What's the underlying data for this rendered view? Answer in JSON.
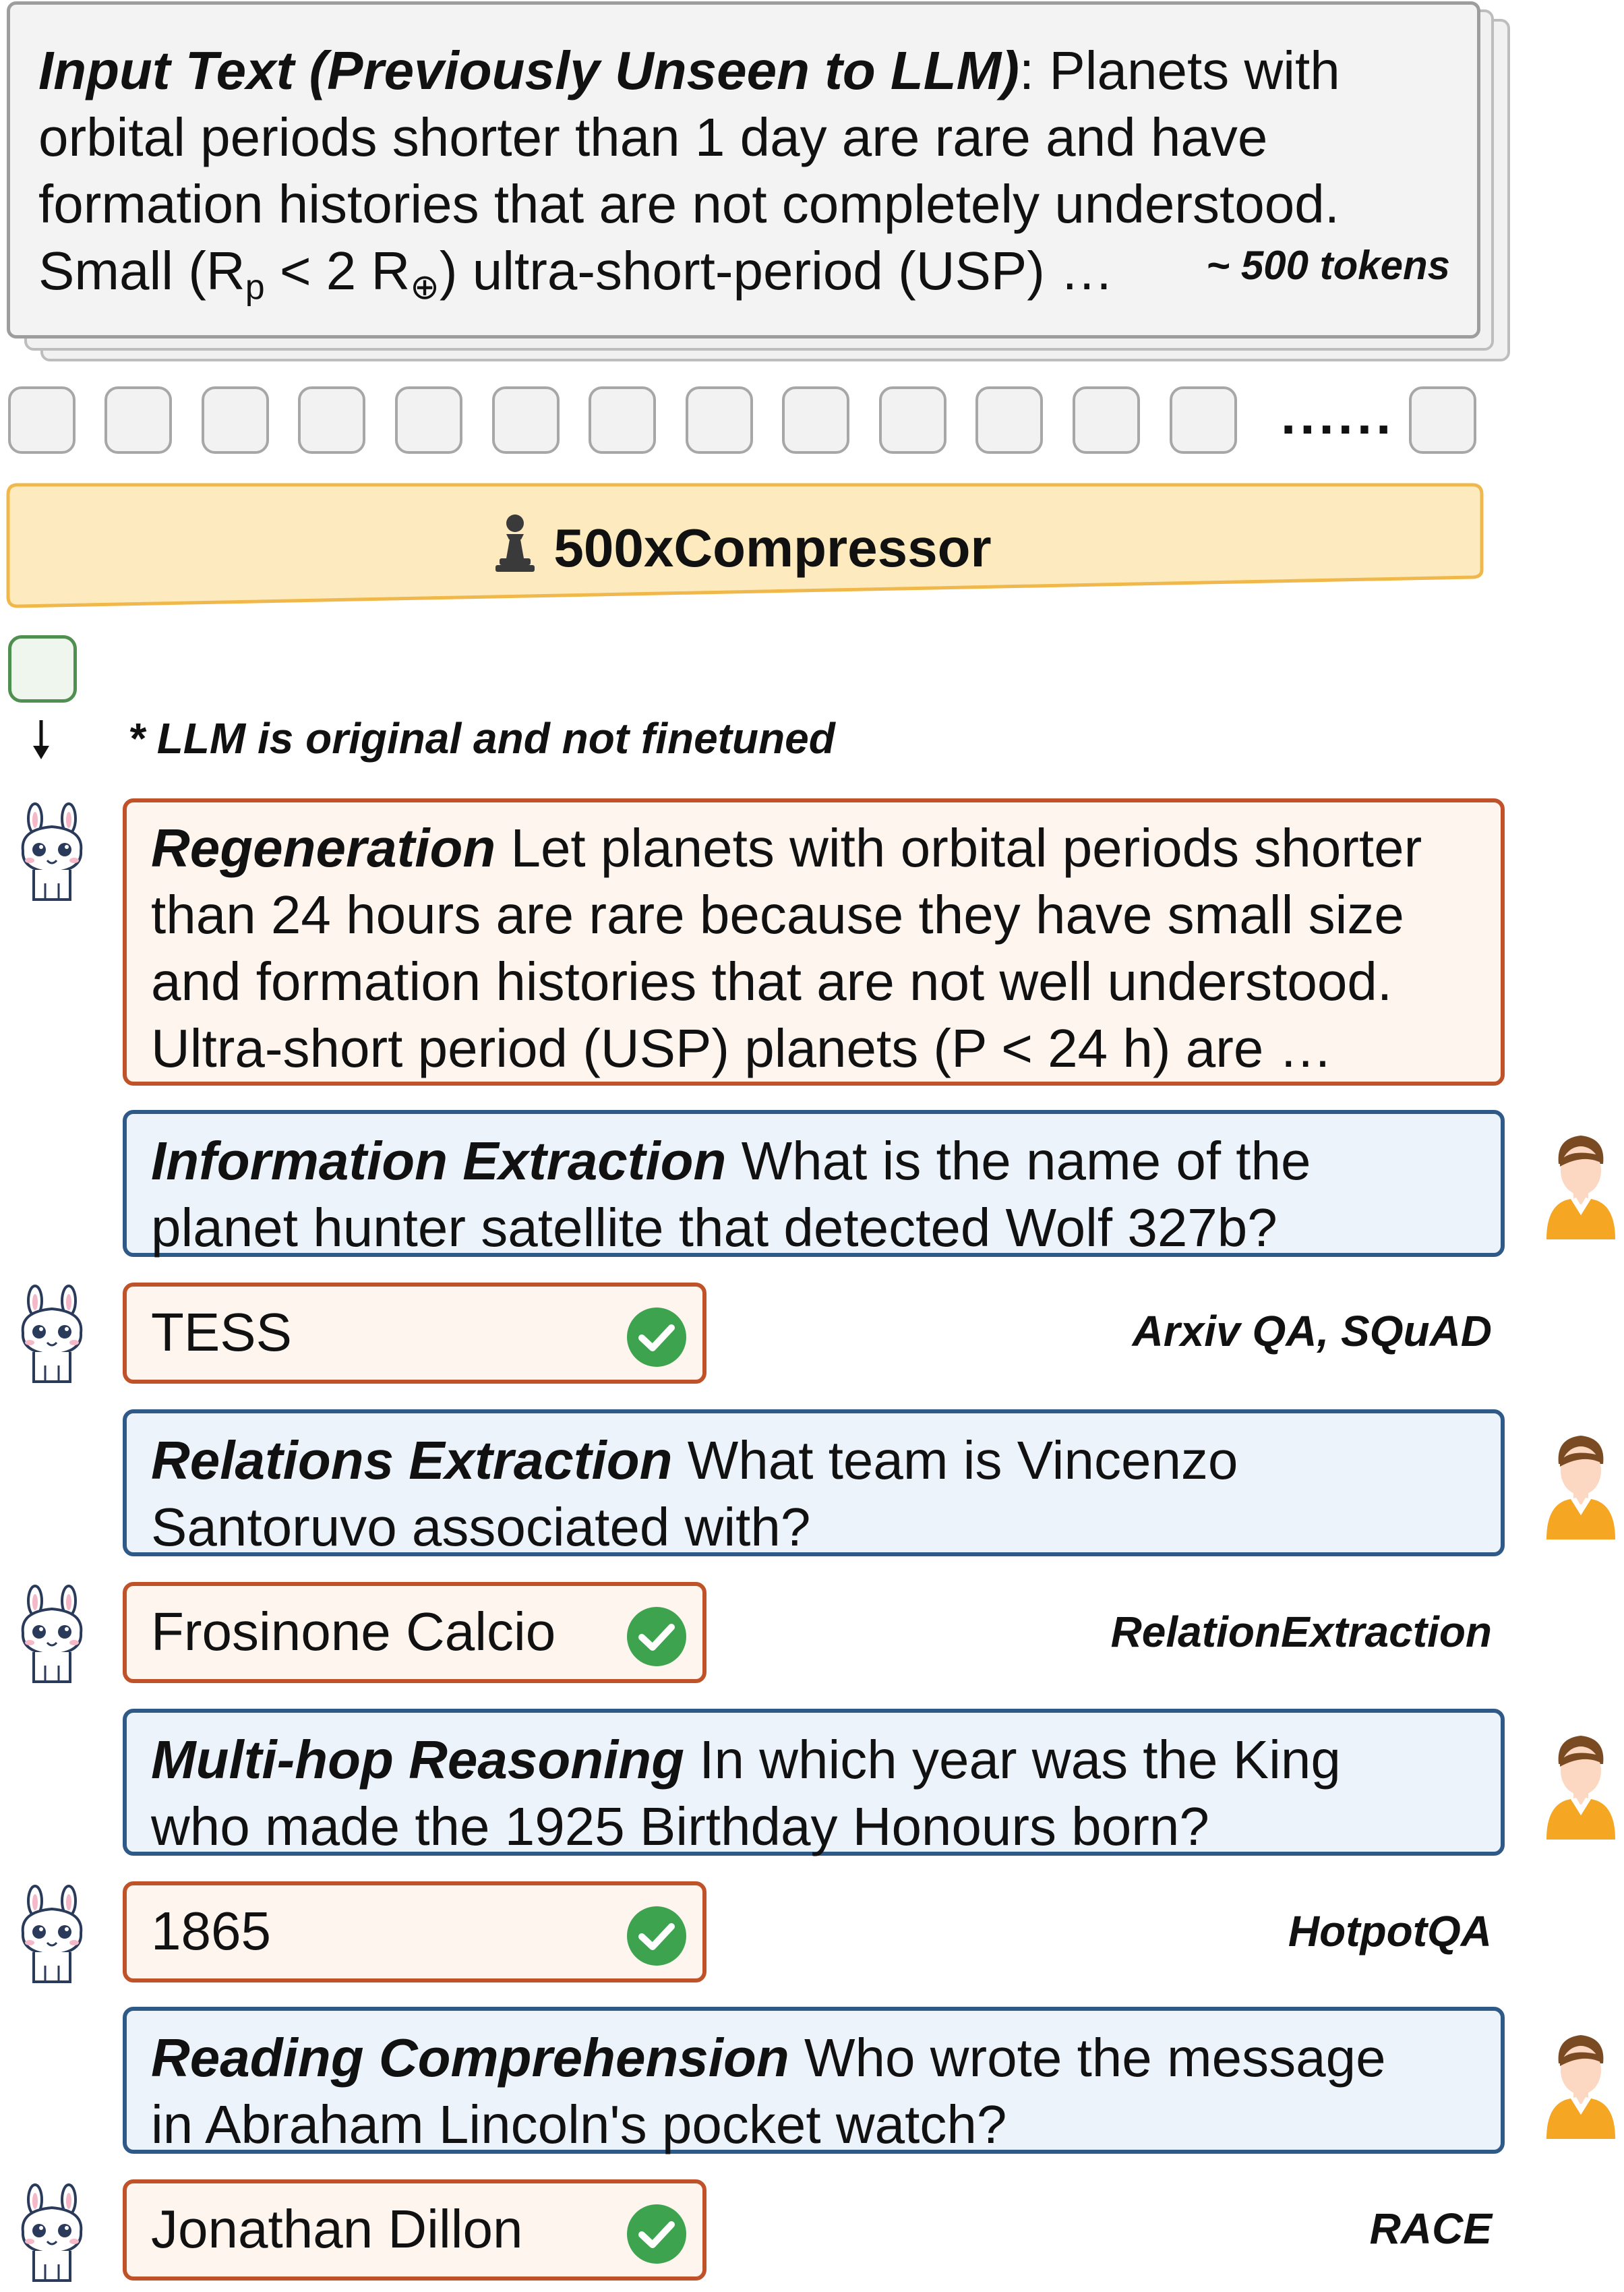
{
  "input": {
    "lead": "Input Text (Previously Unseen to LLM)",
    "text_line1": ": Planets with",
    "text_line2": "orbital periods shorter than 1 day are rare and have",
    "text_line3": "formation histories that are not completely understood.",
    "small_a": "Small (R",
    "sub_p": "p",
    "small_b": " < 2 R",
    "sub_earth": "⊕",
    "small_c": ") ultra-short-period (USP) …",
    "tokens": "~ 500 tokens"
  },
  "token_row": {
    "ellipsis": "......"
  },
  "compressor": {
    "label": "500xCompressor",
    "icon": "chess-pawn-icon"
  },
  "note": "* LLM is original and not finetuned",
  "regeneration": {
    "lead": "Regeneration",
    "line1": " Let planets with orbital periods shorter",
    "line2": "than 24 hours are rare because they have small size",
    "line3": "and formation histories that are not well understood.",
    "line4": "Ultra-short period (USP) planets (P < 24 h) are …"
  },
  "tasks": [
    {
      "lead": "Information Extraction",
      "question_line1": " What is the name of the",
      "question_line2": "planet hunter satellite that detected Wolf 327b?",
      "answer": "TESS",
      "dataset": "Arxiv QA, SQuAD"
    },
    {
      "lead": "Relations Extraction",
      "question_line1": " What team is Vincenzo",
      "question_line2": "Santoruvo associated with?",
      "answer": "Frosinone Calcio",
      "dataset": "RelationExtraction"
    },
    {
      "lead": "Multi-hop Reasoning",
      "question_line1": " In which year was the King",
      "question_line2": "who made the 1925 Birthday Honours born?",
      "answer": "1865",
      "dataset": "HotpotQA"
    },
    {
      "lead": "Reading Comprehension",
      "question_line1": " Who wrote the message",
      "question_line2": "in Abraham Lincoln's pocket watch?",
      "answer": "Jonathan Dillon",
      "dataset": "RACE"
    }
  ],
  "colors": {
    "orange_border": "#c0522a",
    "orange_fill": "#fdf5ee",
    "blue_border": "#2f5a88",
    "blue_fill": "#edf3fb",
    "compressor_fill": "#fdebbf",
    "compressor_border": "#f0b84a",
    "check_green": "#3ea34e"
  }
}
